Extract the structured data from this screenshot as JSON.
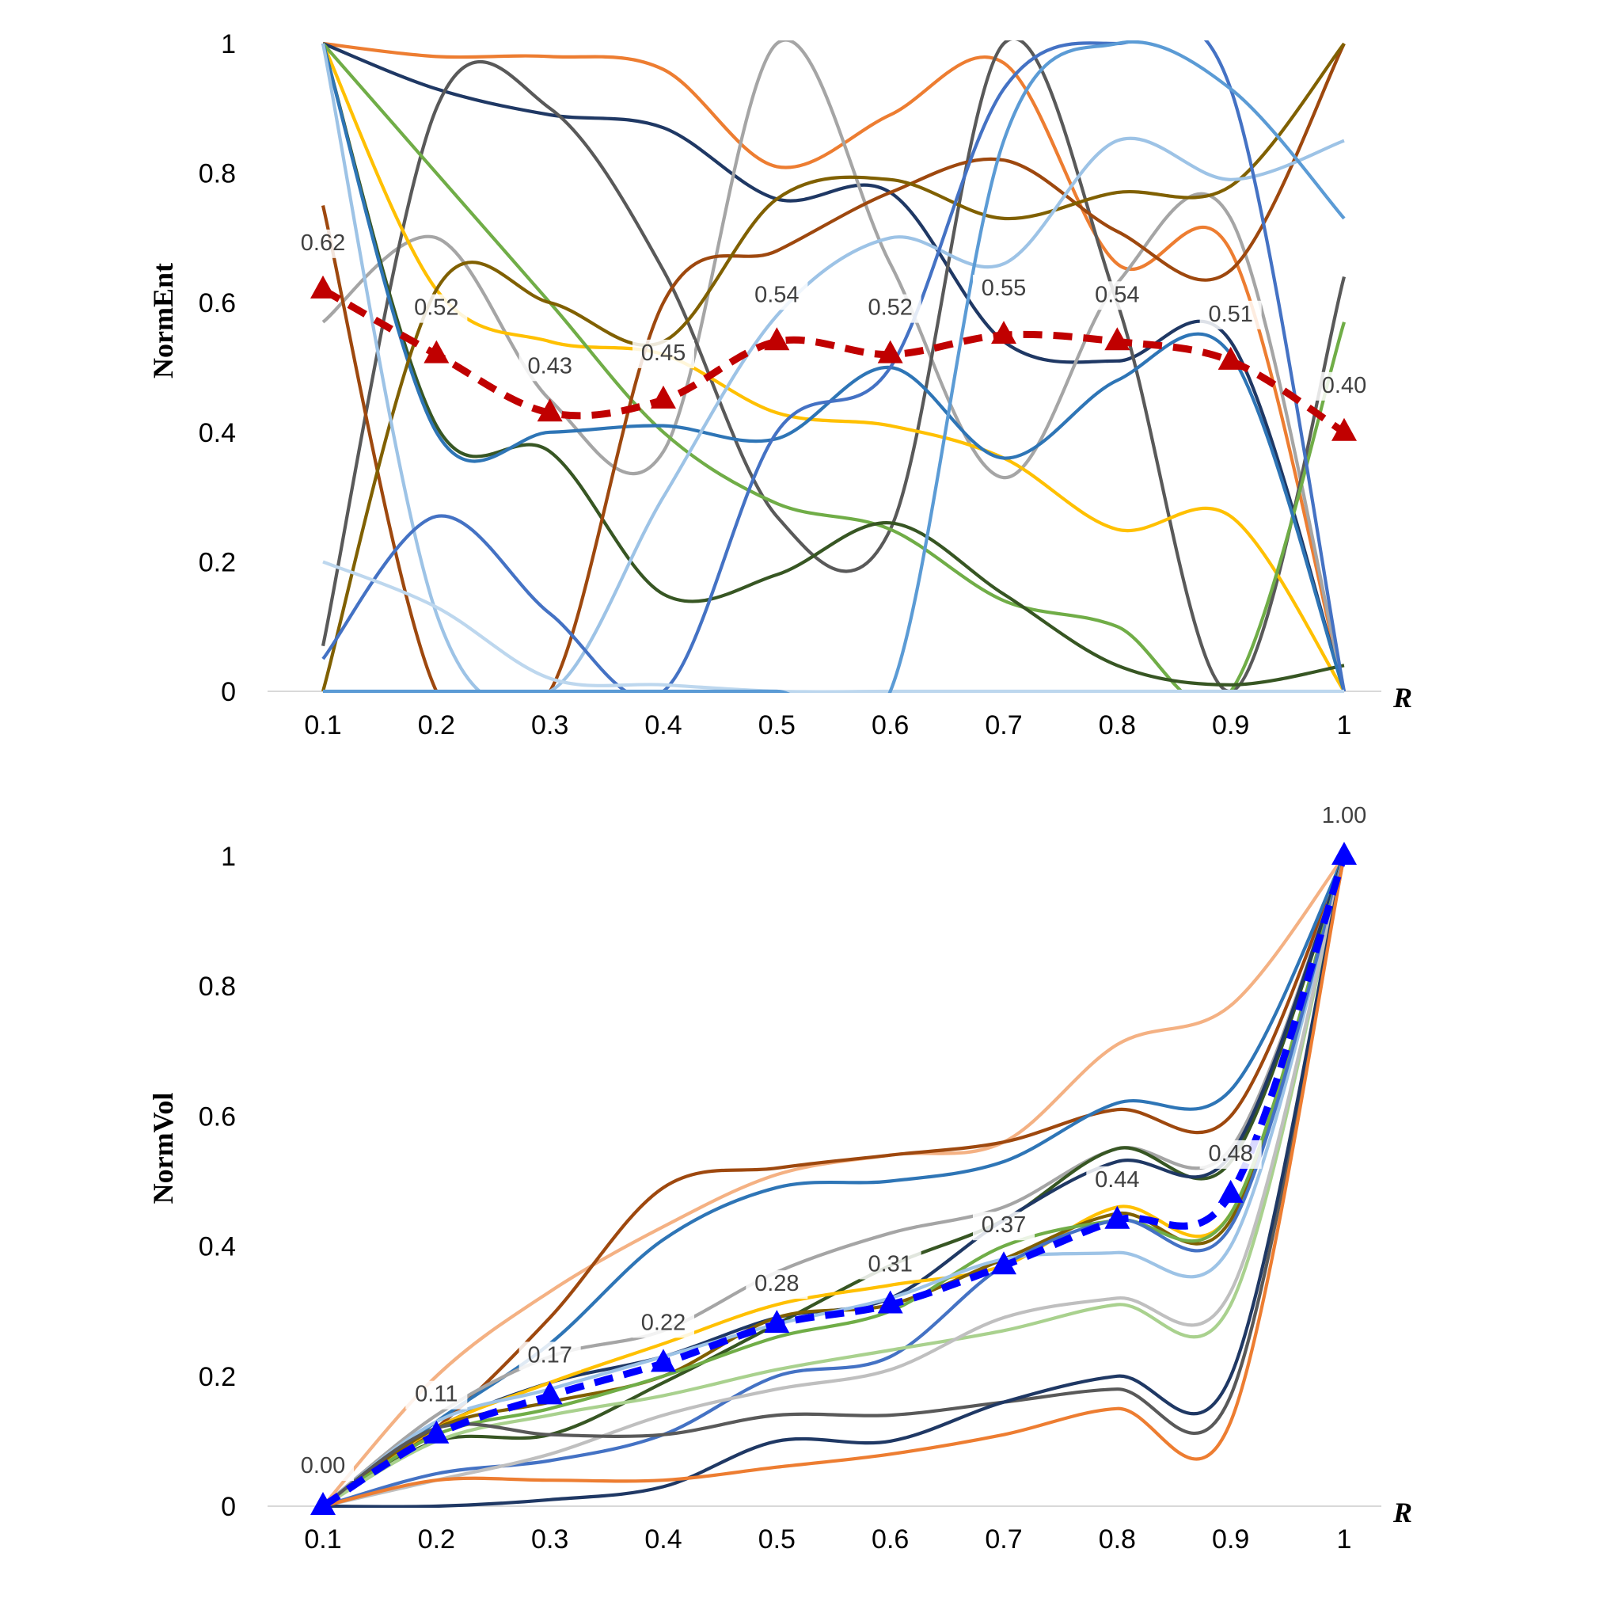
{
  "chart_data": [
    {
      "type": "line",
      "ylabel": "NormEnt",
      "xlabel": "R",
      "x": [
        0.1,
        0.2,
        0.3,
        0.4,
        0.5,
        0.6,
        0.7,
        0.8,
        0.9,
        1
      ],
      "x_tick_labels": [
        "0.1",
        "0.2",
        "0.3",
        "0.4",
        "0.5",
        "0.6",
        "0.7",
        "0.8",
        "0.9",
        "1"
      ],
      "y_tick_labels": [
        "0",
        "0.2",
        "0.4",
        "0.6",
        "0.8",
        "1"
      ],
      "ylim": [
        0,
        1
      ],
      "average": {
        "color": "#c00000",
        "values": [
          0.62,
          0.52,
          0.43,
          0.45,
          0.54,
          0.52,
          0.55,
          0.54,
          0.51,
          0.4
        ],
        "labels": [
          "0.62",
          "0.52",
          "0.43",
          "0.45",
          "0.54",
          "0.52",
          "0.55",
          "0.54",
          "0.51",
          "0.40"
        ]
      },
      "series": [
        {
          "color": "#ed7d31",
          "values": [
            1.0,
            0.98,
            0.98,
            0.96,
            0.81,
            0.89,
            0.97,
            0.66,
            0.68,
            0.0
          ]
        },
        {
          "color": "#1f3864",
          "values": [
            1.0,
            0.93,
            0.89,
            0.87,
            0.76,
            0.77,
            0.54,
            0.51,
            0.54,
            0.0
          ]
        },
        {
          "color": "#a5a5a5",
          "values": [
            0.57,
            0.7,
            0.45,
            0.37,
            1.0,
            0.66,
            0.33,
            0.63,
            0.73,
            0.0
          ]
        },
        {
          "color": "#595959",
          "values": [
            0.07,
            0.9,
            0.9,
            0.65,
            0.27,
            0.25,
            1.0,
            0.6,
            0.0,
            0.64
          ]
        },
        {
          "color": "#ffc000",
          "values": [
            1.0,
            0.62,
            0.54,
            0.52,
            0.43,
            0.41,
            0.36,
            0.25,
            0.27,
            0.0
          ]
        },
        {
          "color": "#70ad47",
          "values": [
            1.0,
            0.8,
            0.6,
            0.4,
            0.29,
            0.25,
            0.14,
            0.1,
            0.0,
            0.57
          ]
        },
        {
          "color": "#375623",
          "values": [
            1.0,
            0.41,
            0.37,
            0.15,
            0.18,
            0.26,
            0.15,
            0.04,
            0.01,
            0.04
          ]
        },
        {
          "color": "#2e75b6",
          "values": [
            1.0,
            0.4,
            0.4,
            0.41,
            0.39,
            0.5,
            0.36,
            0.48,
            0.52,
            0.0
          ]
        },
        {
          "color": "#9e480e",
          "values": [
            0.75,
            0.0,
            0.0,
            0.6,
            0.68,
            0.77,
            0.82,
            0.71,
            0.65,
            1.0
          ]
        },
        {
          "color": "#806000",
          "values": [
            0.0,
            0.62,
            0.6,
            0.54,
            0.76,
            0.79,
            0.73,
            0.77,
            0.78,
            1.0
          ]
        },
        {
          "color": "#9dc3e6",
          "values": [
            1.0,
            0.12,
            0.0,
            0.3,
            0.58,
            0.7,
            0.66,
            0.85,
            0.79,
            0.85
          ]
        },
        {
          "color": "#4472c4",
          "values": [
            0.05,
            0.27,
            0.12,
            0.0,
            0.4,
            0.5,
            0.93,
            1.0,
            0.93,
            0.0
          ]
        },
        {
          "color": "#bdd7ee",
          "values": [
            0.2,
            0.13,
            0.02,
            0.01,
            0.0,
            0.0,
            0.0,
            0.0,
            0.0,
            0.0
          ]
        },
        {
          "color": "#5b9bd5",
          "values": [
            0.0,
            0.0,
            0.0,
            0.0,
            0.0,
            0.0,
            0.85,
            1.0,
            0.93,
            0.73
          ]
        }
      ]
    },
    {
      "type": "line",
      "ylabel": "NormVol",
      "xlabel": "R",
      "x": [
        0.1,
        0.2,
        0.3,
        0.4,
        0.5,
        0.6,
        0.7,
        0.8,
        0.9,
        1
      ],
      "x_tick_labels": [
        "0.1",
        "0.2",
        "0.3",
        "0.4",
        "0.5",
        "0.6",
        "0.7",
        "0.8",
        "0.9",
        "1"
      ],
      "y_tick_labels": [
        "0",
        "0.2",
        "0.4",
        "0.6",
        "0.8",
        "1"
      ],
      "ylim": [
        0,
        1
      ],
      "average": {
        "color": "#0000ff",
        "values": [
          0.0,
          0.11,
          0.17,
          0.22,
          0.28,
          0.31,
          0.37,
          0.44,
          0.48,
          1.0
        ],
        "labels": [
          "0.00",
          "0.11",
          "0.17",
          "0.22",
          "0.28",
          "0.31",
          "0.37",
          "0.44",
          "0.48",
          "1.00"
        ]
      },
      "series": [
        {
          "color": "#f4b183",
          "values": [
            0.0,
            0.2,
            0.33,
            0.43,
            0.51,
            0.54,
            0.56,
            0.71,
            0.77,
            1.0
          ]
        },
        {
          "color": "#9e480e",
          "values": [
            0.0,
            0.12,
            0.29,
            0.49,
            0.52,
            0.54,
            0.56,
            0.61,
            0.6,
            1.0
          ]
        },
        {
          "color": "#2e75b6",
          "values": [
            0.0,
            0.13,
            0.25,
            0.41,
            0.49,
            0.5,
            0.53,
            0.62,
            0.64,
            1.0
          ]
        },
        {
          "color": "#a5a5a5",
          "values": [
            0.0,
            0.14,
            0.23,
            0.27,
            0.36,
            0.42,
            0.46,
            0.55,
            0.55,
            1.0
          ]
        },
        {
          "color": "#375623",
          "values": [
            0.0,
            0.1,
            0.11,
            0.19,
            0.28,
            0.37,
            0.44,
            0.55,
            0.53,
            1.0
          ]
        },
        {
          "color": "#1f3864",
          "values": [
            0.0,
            0.12,
            0.19,
            0.23,
            0.29,
            0.32,
            0.44,
            0.53,
            0.54,
            1.0
          ]
        },
        {
          "color": "#ffc000",
          "values": [
            0.0,
            0.12,
            0.19,
            0.25,
            0.31,
            0.34,
            0.37,
            0.46,
            0.45,
            1.0
          ]
        },
        {
          "color": "#806000",
          "values": [
            0.0,
            0.12,
            0.16,
            0.2,
            0.29,
            0.31,
            0.38,
            0.45,
            0.44,
            1.0
          ]
        },
        {
          "color": "#70ad47",
          "values": [
            0.0,
            0.11,
            0.15,
            0.2,
            0.26,
            0.3,
            0.4,
            0.44,
            0.45,
            1.0
          ]
        },
        {
          "color": "#9dc3e6",
          "values": [
            0.0,
            0.13,
            0.18,
            0.23,
            0.28,
            0.32,
            0.38,
            0.39,
            0.4,
            1.0
          ]
        },
        {
          "color": "#4472c4",
          "values": [
            0.0,
            0.05,
            0.07,
            0.11,
            0.2,
            0.23,
            0.37,
            0.44,
            0.43,
            1.0
          ]
        },
        {
          "color": "#a9d18e",
          "values": [
            0.0,
            0.1,
            0.14,
            0.17,
            0.21,
            0.24,
            0.27,
            0.31,
            0.31,
            1.0
          ]
        },
        {
          "color": "#bfbfbf",
          "values": [
            0.0,
            0.04,
            0.08,
            0.14,
            0.18,
            0.21,
            0.29,
            0.32,
            0.33,
            1.0
          ]
        },
        {
          "color": "#595959",
          "values": [
            0.0,
            0.12,
            0.11,
            0.11,
            0.14,
            0.14,
            0.16,
            0.18,
            0.17,
            1.0
          ]
        },
        {
          "color": "#1f3864",
          "values": [
            0.0,
            0.0,
            0.01,
            0.03,
            0.1,
            0.1,
            0.16,
            0.2,
            0.2,
            1.0
          ]
        },
        {
          "color": "#ed7d31",
          "values": [
            0.0,
            0.04,
            0.04,
            0.04,
            0.06,
            0.08,
            0.11,
            0.15,
            0.13,
            1.0
          ]
        }
      ]
    }
  ]
}
